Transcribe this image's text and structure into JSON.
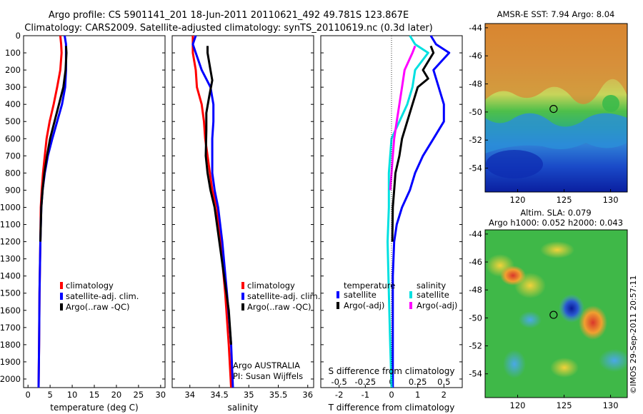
{
  "header": {
    "line1": "Argo profile: CS 5901141_201 18-Jun-2011 20110621_492 49.781S 123.867E",
    "line2": "Climatology: CARS2009. Satellite-adjusted climatology: synTS_20110619.nc (0.3d later)"
  },
  "chart_data": [
    {
      "id": "temperature-profile",
      "type": "line",
      "xlabel": "temperature (deg C)",
      "ylabel": "",
      "xlim": [
        -1,
        31
      ],
      "ylim": [
        2050,
        0
      ],
      "x_ticks": [
        0,
        5,
        10,
        15,
        20,
        25,
        30
      ],
      "y_ticks": [
        0,
        100,
        200,
        300,
        400,
        500,
        600,
        700,
        800,
        900,
        1000,
        1100,
        1200,
        1300,
        1400,
        1500,
        1600,
        1700,
        1800,
        1900,
        2000
      ],
      "series": [
        {
          "name": "climatology",
          "color": "#ff0000",
          "points": [
            [
              7.3,
              0
            ],
            [
              7.5,
              50
            ],
            [
              7.6,
              100
            ],
            [
              7.3,
              200
            ],
            [
              6.6,
              300
            ],
            [
              5.8,
              400
            ],
            [
              4.9,
              500
            ],
            [
              4.2,
              600
            ],
            [
              3.8,
              700
            ],
            [
              3.4,
              800
            ],
            [
              3.1,
              900
            ],
            [
              2.9,
              1000
            ],
            [
              2.8,
              1200
            ],
            [
              2.6,
              1500
            ],
            [
              2.5,
              1800
            ],
            [
              2.4,
              2050
            ]
          ]
        },
        {
          "name": "satellite-adj. clim.",
          "color": "#0000ff",
          "points": [
            [
              8.3,
              0
            ],
            [
              8.6,
              50
            ],
            [
              8.6,
              100
            ],
            [
              8.6,
              200
            ],
            [
              8.4,
              300
            ],
            [
              7.7,
              400
            ],
            [
              6.6,
              500
            ],
            [
              5.5,
              600
            ],
            [
              4.5,
              700
            ],
            [
              3.8,
              800
            ],
            [
              3.3,
              900
            ],
            [
              3.0,
              1000
            ],
            [
              2.8,
              1200
            ],
            [
              2.6,
              1500
            ],
            [
              2.5,
              1800
            ],
            [
              2.4,
              2050
            ]
          ]
        },
        {
          "name": "Argo(..raw -QC)",
          "color": "#000000",
          "points": [
            [
              8.6,
              60
            ],
            [
              8.7,
              100
            ],
            [
              8.5,
              200
            ],
            [
              8.0,
              300
            ],
            [
              7.0,
              400
            ],
            [
              6.0,
              500
            ],
            [
              5.0,
              600
            ],
            [
              4.3,
              700
            ],
            [
              3.7,
              800
            ],
            [
              3.3,
              900
            ],
            [
              3.0,
              1000
            ],
            [
              2.8,
              1200
            ]
          ]
        }
      ],
      "legend": {
        "position": "lower-center",
        "entries": [
          "climatology",
          "satellite-adj. clim.",
          "Argo(..raw -QC)"
        ]
      }
    },
    {
      "id": "salinity-profile",
      "type": "line",
      "xlabel": "salinity",
      "xlim": [
        33.7,
        36.1
      ],
      "ylim": [
        2050,
        0
      ],
      "x_ticks": [
        34,
        34.5,
        35,
        35.5,
        36
      ],
      "series": [
        {
          "name": "climatology",
          "color": "#ff0000",
          "points": [
            [
              34.05,
              0
            ],
            [
              34.05,
              100
            ],
            [
              34.1,
              200
            ],
            [
              34.12,
              300
            ],
            [
              34.2,
              400
            ],
            [
              34.24,
              500
            ],
            [
              34.26,
              600
            ],
            [
              34.3,
              700
            ],
            [
              34.34,
              800
            ],
            [
              34.38,
              900
            ],
            [
              34.46,
              1000
            ],
            [
              34.52,
              1200
            ],
            [
              34.6,
              1500
            ],
            [
              34.66,
              1800
            ],
            [
              34.7,
              2050
            ]
          ]
        },
        {
          "name": "satellite-adj. clim.",
          "color": "#0000ff",
          "points": [
            [
              34.1,
              0
            ],
            [
              34.05,
              50
            ],
            [
              34.1,
              100
            ],
            [
              34.2,
              200
            ],
            [
              34.35,
              300
            ],
            [
              34.4,
              400
            ],
            [
              34.4,
              500
            ],
            [
              34.38,
              600
            ],
            [
              34.38,
              700
            ],
            [
              34.38,
              800
            ],
            [
              34.42,
              900
            ],
            [
              34.48,
              1000
            ],
            [
              34.55,
              1200
            ],
            [
              34.63,
              1500
            ],
            [
              34.7,
              1800
            ],
            [
              34.73,
              2050
            ]
          ]
        },
        {
          "name": "Argo(..raw -QC)",
          "color": "#000000",
          "points": [
            [
              34.3,
              60
            ],
            [
              34.3,
              100
            ],
            [
              34.35,
              200
            ],
            [
              34.38,
              260
            ],
            [
              34.33,
              350
            ],
            [
              34.28,
              450
            ],
            [
              34.28,
              550
            ],
            [
              34.27,
              700
            ],
            [
              34.3,
              800
            ],
            [
              34.35,
              900
            ],
            [
              34.42,
              1000
            ],
            [
              34.5,
              1200
            ],
            [
              34.58,
              1400
            ],
            [
              34.66,
              1600
            ],
            [
              34.7,
              1800
            ]
          ]
        }
      ],
      "legend": {
        "position": "lower-center",
        "entries": [
          "climatology",
          "satellite-adj. clim.",
          "Argo(..raw -QC)"
        ]
      },
      "annotations": [
        "Argo AUSTRALIA",
        "PI: Susan Wijffels"
      ]
    },
    {
      "id": "difference-profile",
      "type": "line",
      "xlabel": "T difference from climatology",
      "top_xlabel": "S difference from climatology",
      "xlim": [
        -2.7,
        2.7
      ],
      "ylim": [
        2050,
        0
      ],
      "x_ticks": [
        -2,
        -1,
        0,
        1,
        2
      ],
      "top_ticks_labels": [
        "-0.5",
        "-0.25",
        "0",
        "0.25",
        "0.5"
      ],
      "series": [
        {
          "name": "temperature satellite",
          "color": "#0000ff",
          "points": [
            [
              1.5,
              0
            ],
            [
              1.7,
              50
            ],
            [
              2.2,
              100
            ],
            [
              1.6,
              200
            ],
            [
              1.8,
              300
            ],
            [
              2.0,
              400
            ],
            [
              2.0,
              500
            ],
            [
              1.6,
              600
            ],
            [
              1.2,
              700
            ],
            [
              0.9,
              800
            ],
            [
              0.7,
              900
            ],
            [
              0.4,
              1000
            ],
            [
              0.2,
              1100
            ],
            [
              0.1,
              1200
            ],
            [
              0.05,
              1400
            ],
            [
              0.05,
              2050
            ]
          ]
        },
        {
          "name": "temperature Argo(-adj)",
          "color": "#000000",
          "points": [
            [
              1.5,
              60
            ],
            [
              1.6,
              100
            ],
            [
              1.2,
              200
            ],
            [
              1.4,
              250
            ],
            [
              1.0,
              300
            ],
            [
              0.8,
              400
            ],
            [
              0.6,
              500
            ],
            [
              0.4,
              600
            ],
            [
              0.3,
              700
            ],
            [
              0.15,
              800
            ],
            [
              0.1,
              900
            ],
            [
              0.05,
              1000
            ],
            [
              0.03,
              1200
            ]
          ]
        },
        {
          "name": "salinity satellite",
          "color": "#00e0e0",
          "points": [
            [
              0.7,
              0
            ],
            [
              0.9,
              50
            ],
            [
              1.4,
              100
            ],
            [
              0.9,
              200
            ],
            [
              0.8,
              300
            ],
            [
              0.6,
              400
            ],
            [
              0.3,
              500
            ],
            [
              0.0,
              600
            ],
            [
              -0.1,
              800
            ],
            [
              -0.1,
              1000
            ],
            [
              -0.15,
              1200
            ],
            [
              -0.1,
              1500
            ],
            [
              -0.05,
              1800
            ],
            [
              0.0,
              2050
            ]
          ]
        },
        {
          "name": "salinity Argo(-adj)",
          "color": "#ff00ff",
          "points": [
            [
              0.9,
              60
            ],
            [
              0.8,
              100
            ],
            [
              0.5,
              200
            ],
            [
              0.4,
              300
            ],
            [
              0.3,
              400
            ],
            [
              0.2,
              500
            ],
            [
              0.1,
              600
            ],
            [
              0.05,
              700
            ],
            [
              0.0,
              800
            ],
            [
              -0.05,
              900
            ]
          ]
        }
      ],
      "legend": {
        "position": "lower-center",
        "temperature_title": "temperature",
        "salinity_title": "salinity",
        "entries": [
          "satellite",
          "Argo(-adj)",
          "satellite",
          "Argo(-adj)"
        ]
      }
    },
    {
      "id": "sst-map",
      "type": "heatmap",
      "title": "AMSR-E SST: 7.94  Argo: 8.04",
      "x_ticks": [
        120,
        125,
        130
      ],
      "y_ticks": [
        -44,
        -46,
        -48,
        -50,
        -52,
        -54
      ],
      "xlim": [
        116.5,
        131.8
      ],
      "ylim": [
        -55.7,
        -43.7
      ],
      "marker": {
        "lon": 123.867,
        "lat": -49.781
      }
    },
    {
      "id": "sla-map",
      "type": "heatmap",
      "title_line1": "Altim. SLA: 0.079",
      "title_line2": "Argo h1000: 0.052 h2000: 0.043",
      "x_ticks": [
        120,
        125,
        130
      ],
      "y_ticks": [
        -44,
        -46,
        -48,
        -50,
        -52,
        -54
      ],
      "xlim": [
        116.5,
        131.8
      ],
      "ylim": [
        -55.7,
        -43.7
      ],
      "marker": {
        "lon": 123.867,
        "lat": -49.781
      }
    }
  ],
  "colors": {
    "climatology": "#ff0000",
    "satellite": "#0000ff",
    "argo": "#000000",
    "salinity_satellite": "#00e0e0",
    "salinity_argo": "#ff00ff"
  },
  "watermark": "©IMOS 29-Sep-2011 20:57:11"
}
